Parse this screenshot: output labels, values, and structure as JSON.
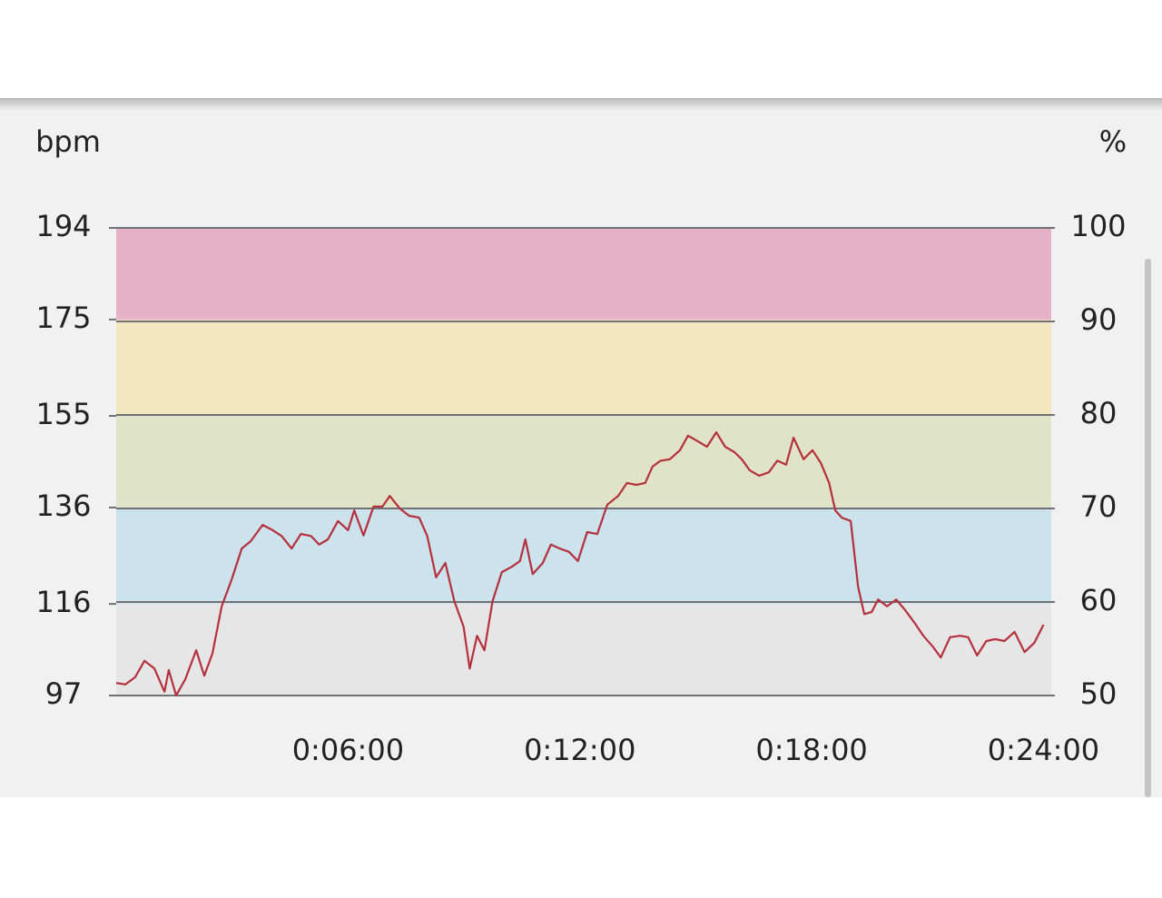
{
  "chart_data": {
    "type": "line",
    "ylabel": "bpm",
    "y2label": "%",
    "x": [
      0,
      0.24,
      0.49,
      0.73,
      0.99,
      1.25,
      1.36,
      1.55,
      1.79,
      2.07,
      2.28,
      2.49,
      2.73,
      2.99,
      3.25,
      3.48,
      3.79,
      4.05,
      4.28,
      4.54,
      4.78,
      5.04,
      5.25,
      5.48,
      5.74,
      6.0,
      6.16,
      6.4,
      6.66,
      6.89,
      7.08,
      7.34,
      7.58,
      7.84,
      8.05,
      8.28,
      8.52,
      8.75,
      8.99,
      9.15,
      9.34,
      9.53,
      9.74,
      9.98,
      10.24,
      10.45,
      10.59,
      10.78,
      11.04,
      11.25,
      11.48,
      11.72,
      11.95,
      12.19,
      12.45,
      12.71,
      12.99,
      13.22,
      13.46,
      13.69,
      13.88,
      14.09,
      14.33,
      14.59,
      14.8,
      15.04,
      15.29,
      15.53,
      15.76,
      16.0,
      16.19,
      16.4,
      16.64,
      16.89,
      17.11,
      17.34,
      17.53,
      17.79,
      18.02,
      18.24,
      18.45,
      18.61,
      18.78,
      19.01,
      19.2,
      19.36,
      19.55,
      19.72,
      19.95,
      20.19,
      20.42,
      20.66,
      20.89,
      21.13,
      21.34,
      21.58,
      21.84,
      22.05,
      22.28,
      22.52,
      22.75,
      22.99,
      23.25,
      23.51,
      23.76,
      24.0
    ],
    "series": [
      {
        "color": "#b5303c",
        "values": [
          99.6,
          99.3,
          100.8,
          104.2,
          102.6,
          97.8,
          102.3,
          97,
          100.4,
          106.4,
          101.1,
          105.7,
          115.5,
          121.1,
          127.5,
          129,
          132.4,
          131.3,
          130.1,
          127.5,
          130.5,
          130.1,
          128.3,
          129.4,
          133.2,
          131.3,
          135.4,
          130.2,
          136.2,
          136.2,
          138.4,
          135.8,
          134.3,
          133.9,
          130.1,
          121.5,
          124.5,
          116.6,
          111.3,
          102.6,
          109.4,
          106.4,
          116.6,
          122.6,
          123.7,
          124.9,
          129.4,
          122.2,
          124.5,
          128.3,
          127.5,
          126.8,
          124.9,
          130.9,
          130.5,
          136.6,
          138.4,
          141.1,
          140.7,
          141.1,
          144.5,
          145.7,
          146,
          147.9,
          150.9,
          149.8,
          148.6,
          151.6,
          148.6,
          147.5,
          146,
          143.7,
          142.6,
          143.3,
          145.7,
          144.9,
          150.5,
          146,
          147.9,
          145.2,
          141.1,
          135.4,
          133.9,
          133.2,
          119.6,
          113.9,
          114.3,
          116.9,
          115.5,
          116.9,
          114.7,
          112.1,
          109.4,
          107.2,
          104.9,
          109.1,
          109.4,
          109.1,
          105.3,
          108.3,
          108.7,
          108.3,
          110.2,
          106,
          107.9,
          111.7
        ]
      }
    ],
    "xlim": [
      0,
      24.2
    ],
    "xticks": [
      {
        "value": 6,
        "label": "0:06:00"
      },
      {
        "value": 12,
        "label": "0:12:00"
      },
      {
        "value": 18,
        "label": "0:18:00"
      },
      {
        "value": 24,
        "label": "0:24:00"
      }
    ],
    "ylim": [
      97,
      194
    ],
    "yticks": [
      97,
      116,
      136,
      155,
      175,
      194
    ],
    "y2lim": [
      50,
      100
    ],
    "y2ticks": [
      50,
      60,
      70,
      80,
      90,
      100
    ],
    "zone_colors": [
      "#e6e6e6",
      "#cce3ee",
      "#dfe3c7",
      "#f4e6bf",
      "#e5b1c4"
    ],
    "grid": true
  }
}
